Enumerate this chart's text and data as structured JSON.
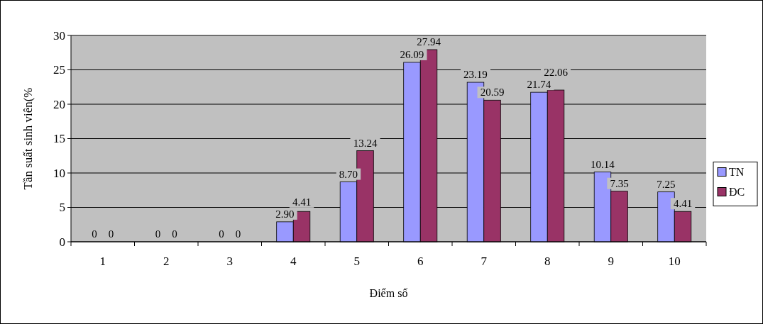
{
  "chart_data": {
    "type": "bar",
    "xlabel": "Điểm số",
    "ylabel": "Tần suất sinh viên(%",
    "categories": [
      "1",
      "2",
      "3",
      "4",
      "5",
      "6",
      "7",
      "8",
      "9",
      "10"
    ],
    "series": [
      {
        "name": "TN",
        "color": "#9999ff",
        "values": [
          0,
          0,
          0,
          2.9,
          8.7,
          26.09,
          23.19,
          21.74,
          10.14,
          7.25
        ],
        "value_labels": [
          "0",
          "0",
          "0",
          "2.90",
          "8.70",
          "26.09",
          "23.19",
          "21.74",
          "10.14",
          "7.25"
        ]
      },
      {
        "name": "ĐC",
        "color": "#993366",
        "values": [
          0,
          0,
          0,
          4.41,
          13.24,
          27.94,
          20.59,
          22.06,
          7.35,
          4.41
        ],
        "value_labels": [
          "0",
          "0",
          "0",
          "4.41",
          "13.24",
          "27.94",
          "20.59",
          "22.06",
          "7.35",
          "4.41"
        ]
      }
    ],
    "ylim": [
      0,
      30
    ],
    "yticks": [
      0,
      5,
      10,
      15,
      20,
      25,
      30
    ],
    "grid": "y",
    "legend": "right"
  }
}
